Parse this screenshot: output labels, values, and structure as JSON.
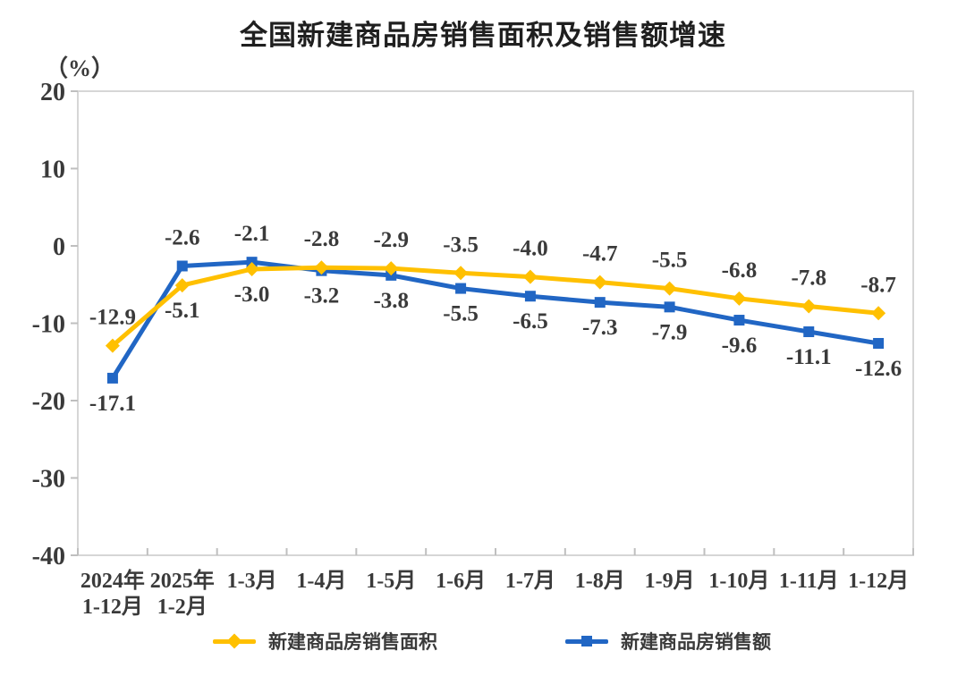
{
  "page": {
    "background": "#ffffff"
  },
  "chart_data": {
    "type": "line",
    "title": "全国新建商品房销售面积及销售额增速",
    "unit_label": "（%）",
    "categories": [
      [
        "2024年",
        "1-12月"
      ],
      [
        "2025年",
        "1-2月"
      ],
      [
        "1-3月"
      ],
      [
        "1-4月"
      ],
      [
        "1-5月"
      ],
      [
        "1-6月"
      ],
      [
        "1-7月"
      ],
      [
        "1-8月"
      ],
      [
        "1-9月"
      ],
      [
        "1-10月"
      ],
      [
        "1-11月"
      ],
      [
        "1-12月"
      ]
    ],
    "yticks": [
      20,
      10,
      0,
      -10,
      -20,
      -30,
      -40
    ],
    "ylim": [
      -40,
      20
    ],
    "grid": false,
    "legend_position": "bottom",
    "series": [
      {
        "name": "新建商品房销售面积",
        "marker": "diamond",
        "color": "#FFC000",
        "values": [
          -12.9,
          -5.1,
          -3.0,
          -2.8,
          -2.9,
          -3.5,
          -4.0,
          -4.7,
          -5.5,
          -6.8,
          -7.8,
          -8.7
        ]
      },
      {
        "name": "新建商品房销售额",
        "marker": "square",
        "color": "#2166C4",
        "values": [
          -17.1,
          -2.6,
          -2.1,
          -3.2,
          -3.8,
          -5.5,
          -6.5,
          -7.3,
          -7.9,
          -9.6,
          -11.1,
          -12.6
        ]
      }
    ],
    "colors": {
      "axis_border": "#d6d6d6",
      "tick": "#bfbfbf",
      "axis_label": "#3a3a3a",
      "data_label": "#3a3a3a",
      "title": "#1f1f1f"
    }
  }
}
